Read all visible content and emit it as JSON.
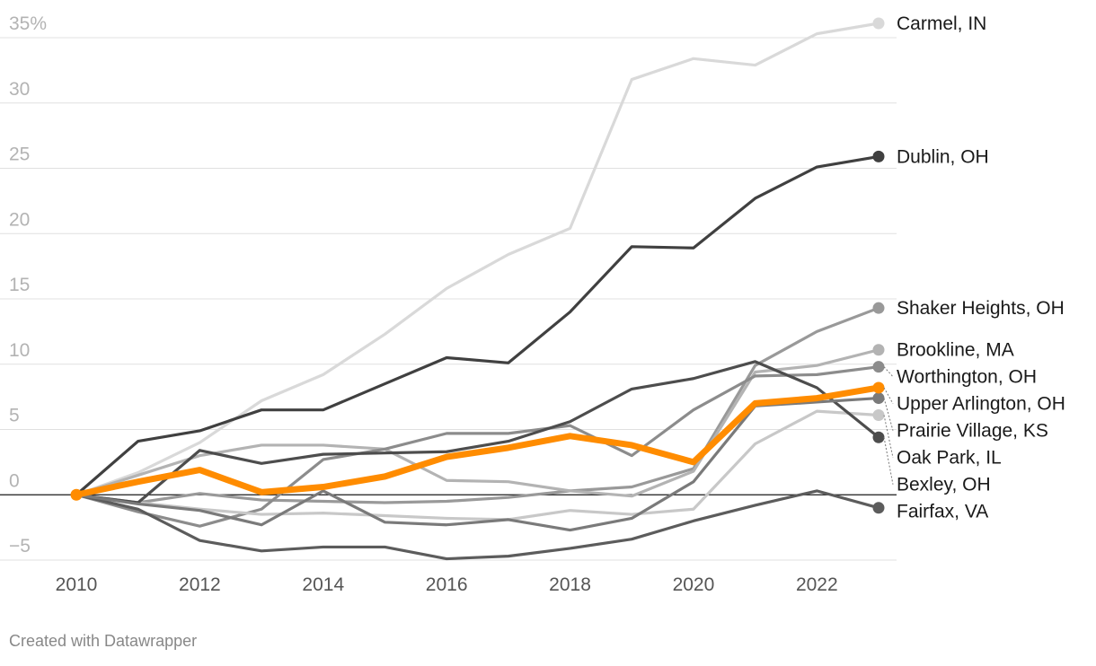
{
  "chart_data": {
    "type": "line",
    "title": "",
    "xlabel": "",
    "ylabel": "",
    "x": [
      2010,
      2011,
      2012,
      2013,
      2014,
      2015,
      2016,
      2017,
      2018,
      2019,
      2020,
      2021,
      2022,
      2023
    ],
    "xlim": [
      2010,
      2023
    ],
    "ylim": [
      -5,
      35
    ],
    "x_ticks": [
      "2010",
      "2012",
      "2014",
      "2016",
      "2018",
      "2020",
      "2022"
    ],
    "y_ticks": [
      {
        "value": 35,
        "label": "35%"
      },
      {
        "value": 30,
        "label": "30"
      },
      {
        "value": 25,
        "label": "25"
      },
      {
        "value": 20,
        "label": "20"
      },
      {
        "value": 15,
        "label": "15"
      },
      {
        "value": 10,
        "label": "10"
      },
      {
        "value": 5,
        "label": "5"
      },
      {
        "value": 0,
        "label": "0"
      },
      {
        "value": -5,
        "label": "−5"
      }
    ],
    "grid": true,
    "series": [
      {
        "name": "Carmel, IN",
        "color": "#d9d9d9",
        "values": [
          0,
          1.7,
          4.0,
          7.2,
          9.2,
          12.3,
          15.8,
          18.4,
          20.4,
          31.8,
          33.4,
          32.9,
          35.3,
          36.1
        ]
      },
      {
        "name": "Dublin, OH",
        "color": "#404040",
        "values": [
          0,
          4.1,
          4.9,
          6.5,
          6.5,
          8.5,
          10.5,
          10.1,
          14.0,
          19.0,
          18.9,
          22.7,
          25.1,
          25.9
        ]
      },
      {
        "name": "Shaker Heights, OH",
        "color": "#999999",
        "values": [
          0,
          -0.6,
          0.1,
          -0.4,
          -0.5,
          -0.6,
          -0.5,
          -0.2,
          0.3,
          0.6,
          2.0,
          9.9,
          12.5,
          14.3
        ]
      },
      {
        "name": "Brookline, MA",
        "color": "#b3b3b3",
        "values": [
          0,
          1.5,
          3.0,
          3.8,
          3.8,
          3.5,
          1.1,
          1.0,
          0.3,
          -0.1,
          1.8,
          9.4,
          9.9,
          11.1
        ]
      },
      {
        "name": "Worthington, OH",
        "color": "#8c8c8c",
        "values": [
          0,
          -1.3,
          -2.4,
          -1.1,
          2.7,
          3.5,
          4.7,
          4.7,
          5.3,
          3.0,
          6.5,
          9.1,
          9.2,
          9.8
        ]
      },
      {
        "name": "Upper Arlington, OH",
        "color": "#ff8c00",
        "values": [
          0,
          1.0,
          1.9,
          0.2,
          0.6,
          1.4,
          2.9,
          3.6,
          4.5,
          3.8,
          2.5,
          7.0,
          7.4,
          8.2
        ]
      },
      {
        "name": "Fairfax, VA",
        "color": "#5c5c5c",
        "values": [
          0,
          -1.1,
          -3.5,
          -4.3,
          -4.0,
          -4.0,
          -4.9,
          -4.7,
          -4.1,
          -3.4,
          -2.0,
          -0.8,
          0.3,
          -1.0
        ]
      },
      {
        "name": "Oak Park, IL",
        "color": "#c8c8c8",
        "values": [
          0,
          -0.6,
          -1.1,
          -1.5,
          -1.4,
          -1.6,
          -1.8,
          -1.9,
          -1.2,
          -1.5,
          -1.1,
          3.9,
          6.4,
          6.1
        ]
      },
      {
        "name": "Bexley, OH",
        "color": "#4d4d4d",
        "values": [
          0,
          -0.6,
          3.4,
          2.4,
          3.1,
          3.2,
          3.3,
          4.1,
          5.6,
          8.1,
          8.9,
          10.2,
          8.2,
          4.4
        ]
      },
      {
        "name": "Prairie Village, KS",
        "color": "#7a7a7a",
        "values": [
          0,
          -0.7,
          -1.2,
          -2.3,
          0.3,
          -2.1,
          -2.3,
          -1.9,
          -2.7,
          -1.8,
          1.0,
          6.8,
          7.1,
          7.4
        ]
      }
    ],
    "label_order": [
      "Carmel, IN",
      "Dublin, OH",
      "Shaker Heights, OH",
      "Brookline, MA",
      "Worthington, OH",
      "Upper Arlington, OH",
      "Fairfax, VA",
      "Oak Park, IL",
      "Bexley, OH",
      "Prairie Village, KS"
    ],
    "highlight": "Upper Arlington, OH",
    "footer": "Created with Datawrapper"
  }
}
